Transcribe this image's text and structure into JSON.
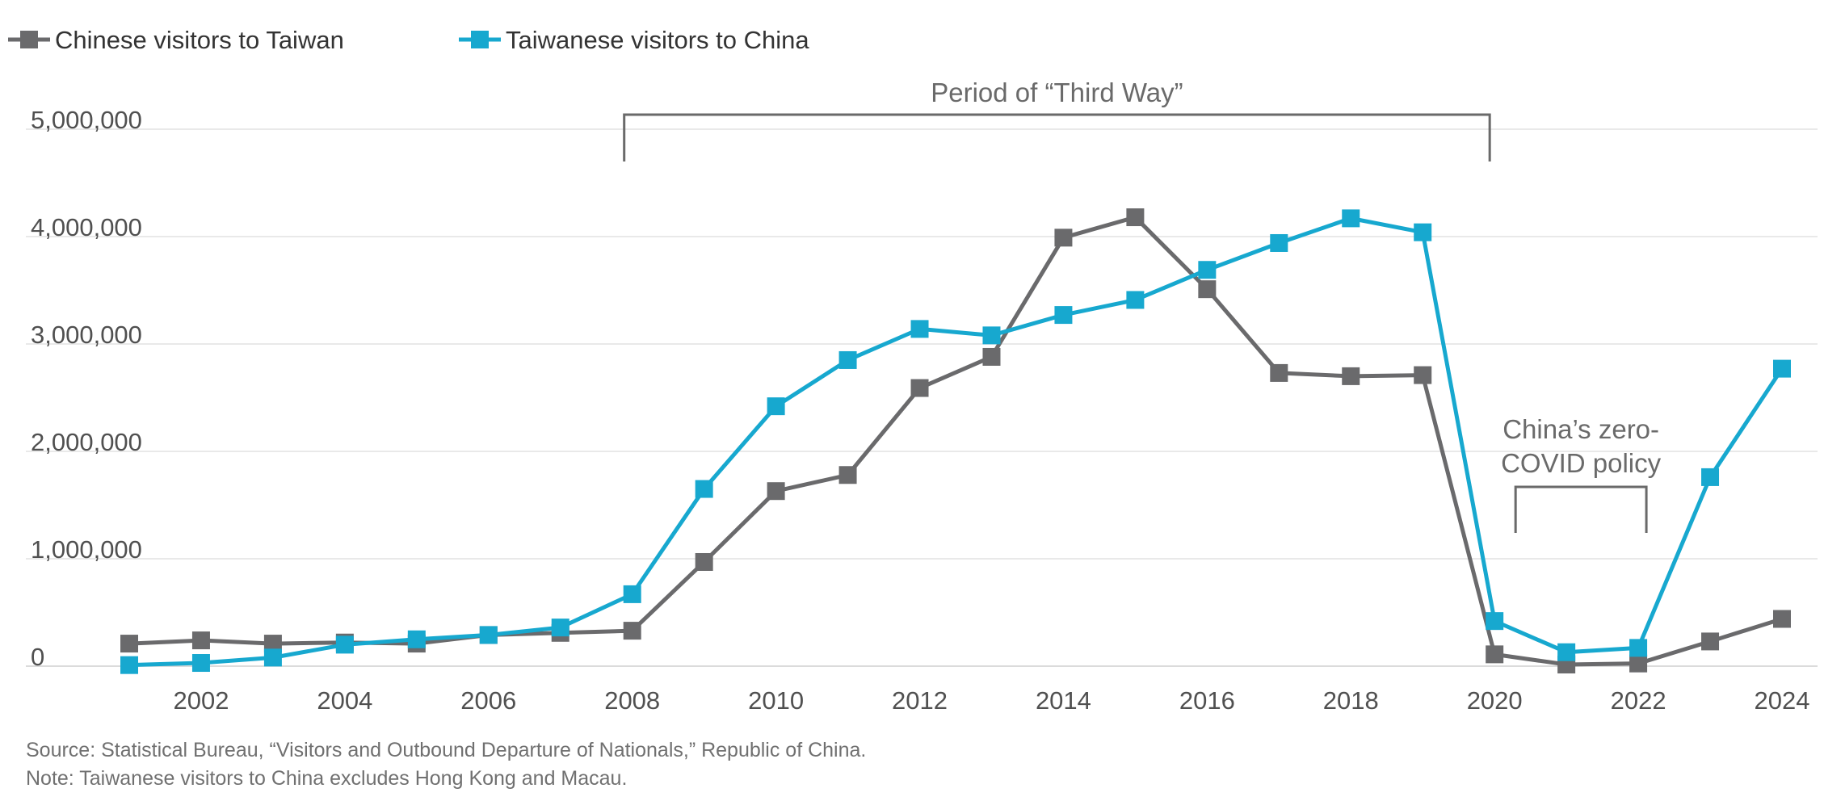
{
  "chart_data": {
    "type": "line",
    "title": "",
    "xlabel": "",
    "ylabel": "",
    "x": [
      2001,
      2002,
      2003,
      2004,
      2005,
      2006,
      2007,
      2008,
      2009,
      2010,
      2011,
      2012,
      2013,
      2014,
      2015,
      2016,
      2017,
      2018,
      2019,
      2020,
      2021,
      2022,
      2023,
      2024
    ],
    "xticks": [
      2002,
      2004,
      2006,
      2008,
      2010,
      2012,
      2014,
      2016,
      2018,
      2020,
      2022,
      2024
    ],
    "xtick_labels": [
      "2002",
      "2004",
      "2006",
      "2008",
      "2010",
      "2012",
      "2014",
      "2016",
      "2018",
      "2020",
      "2022",
      "2024"
    ],
    "xlim": [
      2001,
      2024
    ],
    "ylim": [
      0,
      5000000
    ],
    "yticks": [
      0,
      1000000,
      2000000,
      3000000,
      4000000,
      5000000
    ],
    "ytick_labels": [
      "0",
      "1,000,000",
      "2,000,000",
      "3,000,000",
      "4,000,000",
      "5,000,000"
    ],
    "grid": "horizontal",
    "legend_position": "top-left",
    "series": [
      {
        "name": "Chinese visitors to Taiwan",
        "color": "#6a6a6c",
        "values": [
          210000,
          240000,
          210000,
          220000,
          210000,
          290000,
          310000,
          330000,
          970000,
          1630000,
          1780000,
          2590000,
          2880000,
          3990000,
          4180000,
          3510000,
          2730000,
          2700000,
          2710000,
          110000,
          15000,
          25000,
          230000,
          440000
        ]
      },
      {
        "name": "Taiwanese visitors to China",
        "color": "#17a8cf",
        "values": [
          10000,
          30000,
          80000,
          200000,
          250000,
          290000,
          360000,
          670000,
          1650000,
          2420000,
          2850000,
          3140000,
          3080000,
          3270000,
          3410000,
          3690000,
          3940000,
          4170000,
          4040000,
          420000,
          130000,
          170000,
          1760000,
          2770000
        ]
      }
    ],
    "annotations": [
      {
        "label": "Period of “Third Way”",
        "from": 2008,
        "to": 2020
      },
      {
        "label_line1": "China’s zero-",
        "label_line2": "COVID policy",
        "from": 2020,
        "to": 2022
      }
    ]
  },
  "footer": {
    "source": "Source: Statistical Bureau, “Visitors and Outbound Departure of Nationals,” Republic of China.",
    "note": "Note: Taiwanese visitors to China excludes Hong Kong and Macau."
  }
}
